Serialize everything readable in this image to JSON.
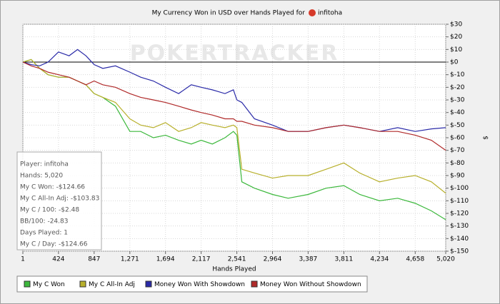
{
  "chart_data": {
    "type": "line",
    "title": "My Currency Won in USD over Hands Played for",
    "player": "infitoha",
    "watermark": "POKERTRACKER",
    "xlabel": "Hands Played",
    "ylabel": "$",
    "grid": true,
    "xlim": [
      1,
      5020
    ],
    "xticks": [
      1,
      424,
      847,
      {
        "value": 1271,
        "label": "1,271"
      },
      {
        "value": 1694,
        "label": "1,694"
      },
      {
        "value": 2117,
        "label": "2,117"
      },
      {
        "value": 2541,
        "label": "2,541"
      },
      {
        "value": 2964,
        "label": "2,964"
      },
      {
        "value": 3387,
        "label": "3,387"
      },
      {
        "value": 3811,
        "label": "3,811"
      },
      {
        "value": 4234,
        "label": "4,234"
      },
      {
        "value": 4658,
        "label": "4,658"
      },
      {
        "value": 5020,
        "label": "5,020"
      }
    ],
    "ylim": [
      -150,
      30
    ],
    "yticks": [
      {
        "value": 30,
        "label": "$30"
      },
      {
        "value": 20,
        "label": "$20"
      },
      {
        "value": 10,
        "label": "$10"
      },
      {
        "value": 0,
        "label": "$0"
      },
      {
        "value": -10,
        "label": "$-10"
      },
      {
        "value": -20,
        "label": "$-20"
      },
      {
        "value": -30,
        "label": "$-30"
      },
      {
        "value": -40,
        "label": "$-40"
      },
      {
        "value": -50,
        "label": "$-50"
      },
      {
        "value": -60,
        "label": "$-60"
      },
      {
        "value": -70,
        "label": "$-70"
      },
      {
        "value": -80,
        "label": "$-80"
      },
      {
        "value": -90,
        "label": "$-90"
      },
      {
        "value": -100,
        "label": "$-100"
      },
      {
        "value": -110,
        "label": "$-110"
      },
      {
        "value": -120,
        "label": "$-120"
      },
      {
        "value": -130,
        "label": "$-130"
      },
      {
        "value": -140,
        "label": "$-140"
      },
      {
        "value": -150,
        "label": "$-150"
      }
    ],
    "x": [
      1,
      100,
      200,
      300,
      424,
      550,
      650,
      750,
      847,
      950,
      1100,
      1271,
      1400,
      1550,
      1694,
      1850,
      2000,
      2117,
      2250,
      2400,
      2500,
      2541,
      2600,
      2750,
      2964,
      3150,
      3387,
      3600,
      3811,
      4000,
      4234,
      4450,
      4658,
      4850,
      5020
    ],
    "series": [
      {
        "name": "My C Won",
        "color": "#3cb83c",
        "values": [
          0,
          2,
          -5,
          -10,
          -12,
          -12,
          -15,
          -18,
          -25,
          -28,
          -35,
          -55,
          -55,
          -60,
          -58,
          -62,
          -65,
          -62,
          -65,
          -60,
          -55,
          -58,
          -95,
          -100,
          -105,
          -108,
          -105,
          -100,
          -98,
          -105,
          -110,
          -108,
          -112,
          -118,
          -125
        ]
      },
      {
        "name": "My C All-In Adj",
        "color": "#b8b02c",
        "values": [
          0,
          2,
          -5,
          -10,
          -12,
          -12,
          -15,
          -18,
          -25,
          -28,
          -32,
          -45,
          -50,
          -52,
          -48,
          -55,
          -52,
          -48,
          -50,
          -52,
          -50,
          -52,
          -85,
          -88,
          -92,
          -90,
          -90,
          -85,
          -80,
          -88,
          -95,
          -92,
          -90,
          -95,
          -104
        ]
      },
      {
        "name": "Money Won With Showdown",
        "color": "#2a2aa8",
        "values": [
          0,
          -2,
          -3,
          0,
          8,
          5,
          10,
          5,
          -2,
          -5,
          -3,
          -8,
          -12,
          -15,
          -20,
          -25,
          -18,
          -20,
          -22,
          -25,
          -22,
          -30,
          -32,
          -45,
          -50,
          -55,
          -55,
          -52,
          -50,
          -52,
          -55,
          -52,
          -55,
          -53,
          -52
        ]
      },
      {
        "name": "Money Won Without Showdown",
        "color": "#b02a2a",
        "values": [
          0,
          -3,
          -5,
          -8,
          -10,
          -12,
          -15,
          -18,
          -15,
          -18,
          -20,
          -25,
          -28,
          -30,
          -32,
          -35,
          -38,
          -40,
          -42,
          -45,
          -45,
          -47,
          -47,
          -50,
          -52,
          -55,
          -55,
          -52,
          -50,
          -52,
          -55,
          -55,
          -58,
          -62,
          -70
        ]
      }
    ],
    "stats": [
      "Player: infitoha",
      "Hands: 5,020",
      "My C Won: -$124.66",
      "My C All-In Adj: -$103.83",
      "My C / 100: -$2.48",
      "BB/100: -24.83",
      "Days Played: 1",
      "My C / Day: -$124.66"
    ]
  }
}
